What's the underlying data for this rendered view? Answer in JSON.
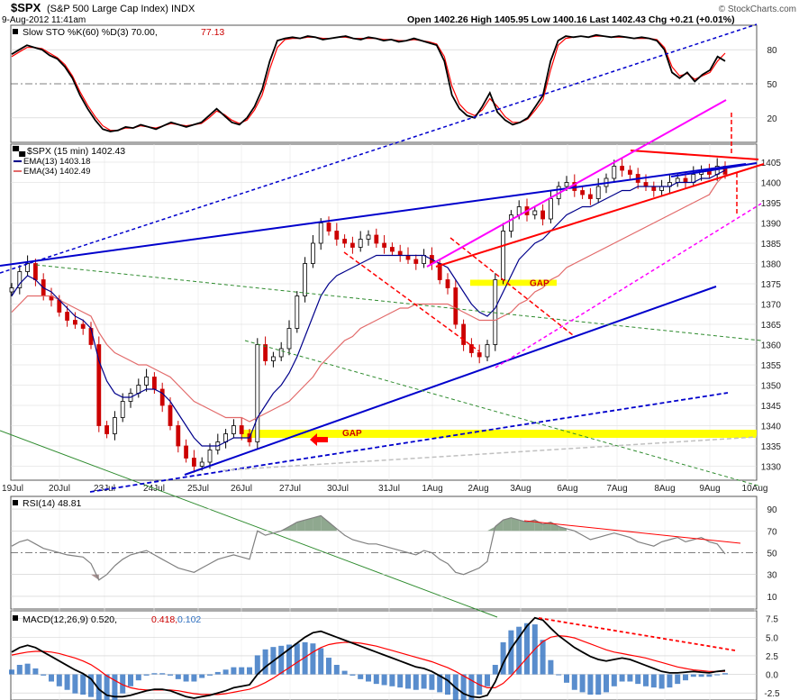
{
  "header": {
    "symbol": "$SPX",
    "name": "(S&P 500 Large Cap Index)",
    "exchange": "INDX",
    "datetime": "9-Aug-2012 11:41am",
    "quote": "Open 1402.26  High 1405.95  Low 1400.16  Last 1402.43  Chg +0.21 (+0.01%)",
    "copyright": "© StockCharts.com"
  },
  "colors": {
    "price_up": "#000000",
    "price_down": "#cc0000",
    "ema13": "#00008b",
    "ema34": "#e26a6a",
    "sto_k": "#000000",
    "sto_d": "#ff0000",
    "rsi": "#808080",
    "rsi_fill": "#8fa88f",
    "macd": "#000000",
    "macd_signal": "#ff0000",
    "histogram": "#3070c0",
    "gap": "#ffff00",
    "blue_line": "#0000cc",
    "red_line": "#ff0000",
    "magenta_line": "#ff00ff",
    "green_line": "#2e8b2e",
    "gray_line": "#c0c0c0"
  },
  "chart_data": [
    {
      "panel": "stochastic",
      "type": "line",
      "title": "Slow STO %K(60) %D(3) 70.00, 77.13",
      "legend_prefix": "Slow STO %K(60) %D(3) 70.00,",
      "legend_value": "77.13",
      "ylim": [
        0,
        100
      ],
      "yticks": [
        20,
        50,
        80
      ],
      "series": [
        {
          "name": "%K",
          "values": [
            76,
            80,
            84,
            82,
            80,
            75,
            72,
            65,
            55,
            40,
            28,
            18,
            10,
            8,
            9,
            12,
            11,
            14,
            12,
            10,
            13,
            16,
            14,
            12,
            14,
            16,
            22,
            28,
            22,
            16,
            14,
            20,
            30,
            45,
            70,
            88,
            90,
            91,
            90,
            92,
            91,
            89,
            90,
            91,
            92,
            90,
            89,
            91,
            90,
            88,
            89,
            87,
            88,
            90,
            88,
            86,
            84,
            70,
            40,
            28,
            22,
            20,
            30,
            42,
            25,
            18,
            14,
            16,
            20,
            30,
            40,
            70,
            88,
            92,
            91,
            92,
            91,
            93,
            92,
            91,
            92,
            91,
            90,
            91,
            90,
            88,
            80,
            60,
            55,
            60,
            52,
            58,
            62,
            74,
            70
          ]
        },
        {
          "name": "%D",
          "values": [
            74,
            78,
            82,
            82,
            81,
            77,
            73,
            67,
            57,
            43,
            31,
            21,
            13,
            9,
            9,
            11,
            11,
            13,
            12,
            11,
            13,
            15,
            14,
            13,
            14,
            15,
            20,
            26,
            23,
            18,
            15,
            18,
            27,
            40,
            63,
            82,
            89,
            90,
            90,
            91,
            91,
            90,
            90,
            91,
            91,
            90,
            90,
            90,
            90,
            89,
            89,
            88,
            88,
            89,
            88,
            87,
            85,
            74,
            48,
            32,
            25,
            22,
            27,
            37,
            30,
            21,
            16,
            16,
            19,
            27,
            36,
            62,
            84,
            90,
            91,
            92,
            91,
            92,
            92,
            91,
            91,
            91,
            90,
            90,
            90,
            89,
            82,
            65,
            57,
            59,
            54,
            57,
            60,
            70,
            77
          ]
        }
      ]
    },
    {
      "panel": "price",
      "type": "candlestick",
      "title": "$SPX (15 min) 1402.43",
      "legend": [
        {
          "label": "$SPX (15 min) 1402.43"
        },
        {
          "label": "EMA(13) 1403.18"
        },
        {
          "label": "EMA(34) 1402.49"
        }
      ],
      "ylim": [
        1327,
        1409
      ],
      "yticks": [
        1330,
        1335,
        1340,
        1345,
        1350,
        1355,
        1360,
        1365,
        1370,
        1375,
        1380,
        1385,
        1390,
        1395,
        1400,
        1405
      ],
      "xlabels": [
        "19Jul",
        "20Jul",
        "23Jul",
        "24Jul",
        "25Jul",
        "26Jul",
        "27Jul",
        "30Jul",
        "31Jul",
        "1Aug",
        "2Aug",
        "3Aug",
        "6Aug",
        "7Aug",
        "8Aug",
        "9Aug",
        "10Aug"
      ],
      "close": [
        1374,
        1378,
        1380,
        1376,
        1372,
        1371,
        1368,
        1366,
        1365,
        1364,
        1360,
        1340,
        1338,
        1342,
        1346,
        1348,
        1350,
        1352,
        1349,
        1345,
        1340,
        1335,
        1332,
        1330,
        1331,
        1334,
        1336,
        1338,
        1340,
        1338,
        1336,
        1360,
        1356,
        1357,
        1359,
        1364,
        1372,
        1380,
        1385,
        1390,
        1388,
        1386,
        1385,
        1384,
        1386,
        1387,
        1385,
        1384,
        1383,
        1382,
        1381,
        1380,
        1382,
        1380,
        1376,
        1374,
        1365,
        1360,
        1358,
        1357,
        1360,
        1376,
        1388,
        1392,
        1394,
        1392,
        1393,
        1391,
        1396,
        1399,
        1400,
        1398,
        1397,
        1396,
        1399,
        1401,
        1404,
        1403,
        1402,
        1400,
        1399,
        1398,
        1399,
        1400,
        1401,
        1400,
        1402,
        1403,
        1402,
        1404,
        1402
      ],
      "series": [
        {
          "name": "EMA(13)",
          "values": [
            1372,
            1375,
            1377,
            1376,
            1374,
            1373,
            1371,
            1369,
            1367,
            1366,
            1364,
            1356,
            1351,
            1348,
            1347,
            1347,
            1348,
            1349,
            1349,
            1348,
            1346,
            1343,
            1340,
            1337,
            1335,
            1335,
            1335,
            1336,
            1337,
            1337,
            1337,
            1342,
            1345,
            1348,
            1350,
            1353,
            1357,
            1362,
            1367,
            1372,
            1375,
            1377,
            1378,
            1379,
            1380,
            1381,
            1382,
            1382,
            1382,
            1382,
            1382,
            1382,
            1382,
            1381,
            1380,
            1379,
            1376,
            1373,
            1370,
            1368,
            1367,
            1369,
            1373,
            1377,
            1381,
            1383,
            1385,
            1386,
            1388,
            1390,
            1392,
            1393,
            1394,
            1394,
            1395,
            1396,
            1397,
            1398,
            1398,
            1399,
            1399,
            1399,
            1399,
            1399,
            1400,
            1400,
            1400,
            1401,
            1401,
            1402,
            1403
          ]
        },
        {
          "name": "EMA(34)",
          "values": [
            1368,
            1370,
            1372,
            1372,
            1372,
            1372,
            1371,
            1370,
            1369,
            1368,
            1367,
            1363,
            1360,
            1358,
            1357,
            1356,
            1355,
            1355,
            1354,
            1353,
            1352,
            1350,
            1348,
            1346,
            1345,
            1344,
            1343,
            1342,
            1342,
            1342,
            1341,
            1342,
            1343,
            1344,
            1345,
            1346,
            1348,
            1350,
            1352,
            1355,
            1357,
            1359,
            1361,
            1362,
            1364,
            1365,
            1366,
            1367,
            1368,
            1369,
            1369,
            1370,
            1370,
            1370,
            1370,
            1370,
            1369,
            1368,
            1367,
            1366,
            1366,
            1366,
            1367,
            1368,
            1370,
            1371,
            1373,
            1374,
            1376,
            1377,
            1379,
            1380,
            1381,
            1382,
            1383,
            1384,
            1385,
            1386,
            1387,
            1388,
            1389,
            1390,
            1391,
            1392,
            1393,
            1394,
            1395,
            1396,
            1397,
            1400,
            1402
          ]
        }
      ],
      "annotations": [
        "GAP",
        "GAP"
      ]
    },
    {
      "panel": "rsi",
      "type": "line",
      "title": "RSI(14) 48.81",
      "ylim": [
        0,
        100
      ],
      "yticks": [
        10,
        30,
        50,
        70,
        90
      ],
      "series": [
        {
          "name": "RSI(14)",
          "values": [
            56,
            60,
            62,
            58,
            54,
            52,
            50,
            48,
            47,
            46,
            40,
            25,
            30,
            38,
            44,
            48,
            50,
            52,
            48,
            44,
            40,
            36,
            34,
            32,
            36,
            40,
            44,
            46,
            48,
            46,
            44,
            70,
            66,
            68,
            70,
            74,
            78,
            80,
            82,
            84,
            78,
            72,
            66,
            62,
            60,
            58,
            58,
            56,
            54,
            52,
            50,
            48,
            52,
            50,
            44,
            40,
            32,
            30,
            33,
            36,
            42,
            74,
            80,
            82,
            80,
            78,
            80,
            76,
            78,
            74,
            72,
            70,
            66,
            62,
            64,
            66,
            68,
            66,
            64,
            60,
            58,
            56,
            60,
            62,
            64,
            60,
            62,
            64,
            60,
            58,
            48.81
          ]
        }
      ]
    },
    {
      "panel": "macd",
      "type": "line",
      "title": "MACD(12,26,9) 0.520, 0.418, 0.102",
      "legend_prefix": "MACD(12,26,9) 0.520,",
      "legend_signal": "0.418,",
      "legend_hist": "0.102",
      "ylim": [
        -3.2,
        8.3
      ],
      "yticks": [
        -2.5,
        0.0,
        2.5,
        5.0,
        7.5
      ],
      "series": [
        {
          "name": "MACD",
          "values": [
            3.0,
            3.6,
            3.9,
            3.6,
            3.0,
            2.4,
            1.8,
            1.2,
            0.6,
            0.1,
            -0.6,
            -2.0,
            -2.8,
            -3.0,
            -3.0,
            -2.8,
            -2.5,
            -2.2,
            -2.0,
            -2.0,
            -2.2,
            -2.6,
            -3.0,
            -3.2,
            -3.0,
            -2.8,
            -2.5,
            -2.2,
            -1.8,
            -1.6,
            -1.4,
            0.0,
            1.0,
            1.8,
            2.6,
            3.4,
            4.2,
            5.0,
            5.6,
            5.8,
            5.4,
            5.0,
            4.6,
            4.2,
            3.8,
            3.4,
            3.0,
            2.6,
            2.2,
            1.8,
            1.4,
            1.0,
            0.8,
            0.4,
            -0.2,
            -0.8,
            -1.8,
            -2.6,
            -3.0,
            -3.1,
            -2.8,
            -1.0,
            1.5,
            3.5,
            5.0,
            6.5,
            7.6,
            7.3,
            6.2,
            5.2,
            4.4,
            3.6,
            3.0,
            2.4,
            2.0,
            1.8,
            2.0,
            2.2,
            2.0,
            1.6,
            1.2,
            0.8,
            0.4,
            0.2,
            0.2,
            0.3,
            0.4,
            0.3,
            0.2,
            0.4,
            0.52
          ]
        },
        {
          "name": "Signal",
          "values": [
            2.6,
            2.8,
            3.0,
            3.1,
            3.1,
            3.0,
            2.8,
            2.5,
            2.2,
            1.8,
            1.3,
            0.6,
            -0.2,
            -0.8,
            -1.4,
            -1.8,
            -2.0,
            -2.1,
            -2.1,
            -2.1,
            -2.1,
            -2.2,
            -2.4,
            -2.6,
            -2.7,
            -2.7,
            -2.7,
            -2.6,
            -2.4,
            -2.2,
            -2.0,
            -1.6,
            -1.1,
            -0.5,
            0.2,
            0.9,
            1.6,
            2.3,
            3.0,
            3.6,
            4.0,
            4.2,
            4.3,
            4.3,
            4.2,
            4.0,
            3.8,
            3.5,
            3.2,
            2.9,
            2.6,
            2.3,
            2.0,
            1.7,
            1.3,
            0.9,
            0.4,
            -0.2,
            -0.8,
            -1.4,
            -1.8,
            -1.8,
            -1.2,
            -0.2,
            1.0,
            2.2,
            3.4,
            4.4,
            5.0,
            5.2,
            5.1,
            4.9,
            4.5,
            4.1,
            3.7,
            3.3,
            3.0,
            2.8,
            2.6,
            2.4,
            2.2,
            1.9,
            1.6,
            1.3,
            1.0,
            0.8,
            0.6,
            0.5,
            0.4,
            0.4,
            0.418
          ]
        }
      ]
    }
  ]
}
